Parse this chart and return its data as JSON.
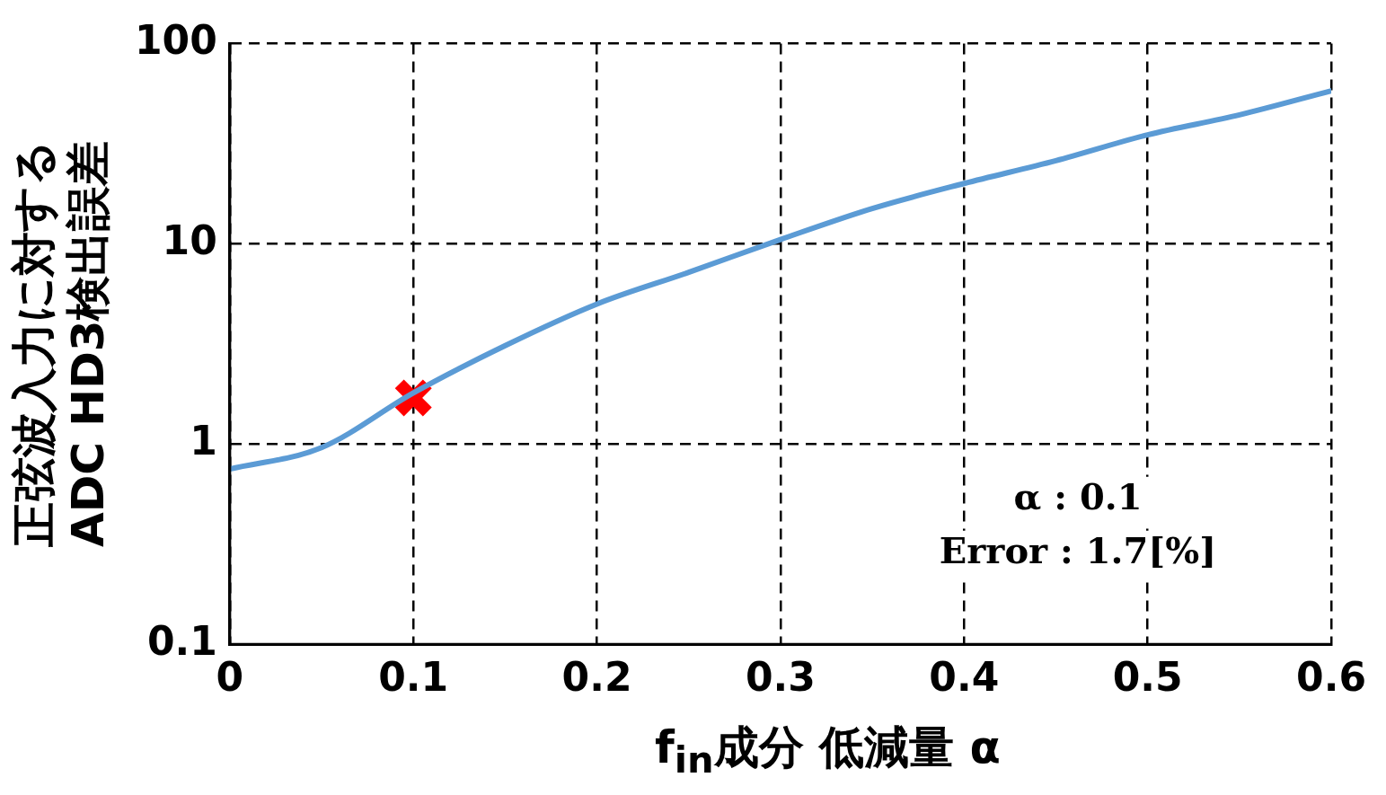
{
  "chart_data": {
    "type": "line",
    "xlabel": "f$_{in}$成分 低減量  α",
    "ylabel": "正弦波入力に対する\nADC HD3検出誤差",
    "log": "y",
    "grid": true,
    "legend": false,
    "xlim": [
      0,
      0.6
    ],
    "xticks": [
      0,
      0.1,
      0.2,
      0.3,
      0.4,
      0.5,
      0.6
    ],
    "ylim": [
      0.1,
      100
    ],
    "yticks": [
      0.1,
      1,
      10,
      100
    ],
    "series": [
      {
        "color": "#5b9bd5",
        "marker": "none",
        "x": [
          0,
          0.05,
          0.1,
          0.15,
          0.2,
          0.25,
          0.3,
          0.35,
          0.4,
          0.45,
          0.5,
          0.55,
          0.6
        ],
        "values": [
          0.75,
          0.96,
          1.8,
          3.1,
          5.0,
          7.2,
          10.5,
          15,
          20,
          26,
          35,
          44,
          58
        ]
      },
      {
        "type": "scatter",
        "color": "#ff0000",
        "marker": "cross",
        "x": [
          0.1
        ],
        "values": [
          1.7
        ]
      }
    ],
    "annotations": [
      "α : 0.1",
      "Error : 1.7[%]"
    ]
  }
}
